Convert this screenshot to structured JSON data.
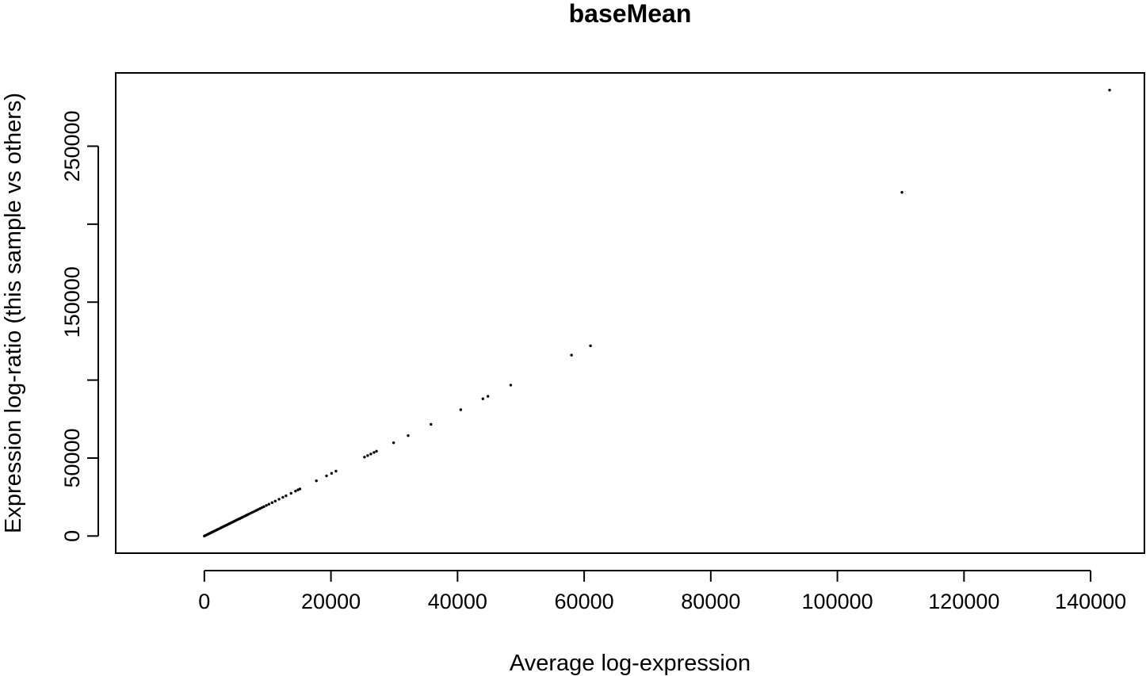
{
  "chart_data": {
    "type": "scatter",
    "title": "baseMean",
    "xlabel": "Average log-expression",
    "ylabel": "Expression log-ratio (this sample vs others)",
    "xlim": [
      -14000,
      148500
    ],
    "ylim": [
      -11000,
      297000
    ],
    "x_ticks": [
      0,
      20000,
      40000,
      60000,
      80000,
      100000,
      120000,
      140000
    ],
    "x_tick_labels": [
      "0",
      "20000",
      "40000",
      "60000",
      "80000",
      "100000",
      "120000",
      "140000"
    ],
    "y_ticks": [
      0,
      50000,
      100000,
      150000,
      200000,
      250000
    ],
    "y_tick_labels": [
      "0",
      "50000",
      "",
      "150000",
      "",
      "250000"
    ],
    "grid": false,
    "legend": "none",
    "point_color": "#000000",
    "points": [
      [
        0,
        0
      ],
      [
        200,
        400
      ],
      [
        400,
        800
      ],
      [
        600,
        1200
      ],
      [
        800,
        1600
      ],
      [
        1000,
        2000
      ],
      [
        1200,
        2400
      ],
      [
        1400,
        2800
      ],
      [
        1600,
        3200
      ],
      [
        1800,
        3600
      ],
      [
        2000,
        4000
      ],
      [
        2200,
        4400
      ],
      [
        2400,
        4800
      ],
      [
        2600,
        5200
      ],
      [
        2800,
        5600
      ],
      [
        3000,
        6000
      ],
      [
        3200,
        6400
      ],
      [
        3400,
        6800
      ],
      [
        3600,
        7200
      ],
      [
        3800,
        7600
      ],
      [
        4000,
        8000
      ],
      [
        4200,
        8400
      ],
      [
        4400,
        8800
      ],
      [
        4600,
        9200
      ],
      [
        4800,
        9600
      ],
      [
        5000,
        10000
      ],
      [
        5200,
        10400
      ],
      [
        5400,
        10800
      ],
      [
        5600,
        11200
      ],
      [
        5800,
        11600
      ],
      [
        6000,
        12000
      ],
      [
        6200,
        12400
      ],
      [
        6400,
        12800
      ],
      [
        6600,
        13200
      ],
      [
        6800,
        13600
      ],
      [
        7000,
        14000
      ],
      [
        7300,
        14600
      ],
      [
        7600,
        15200
      ],
      [
        7900,
        15800
      ],
      [
        8200,
        16400
      ],
      [
        8500,
        17000
      ],
      [
        8800,
        17600
      ],
      [
        9100,
        18200
      ],
      [
        9400,
        18800
      ],
      [
        9800,
        19600
      ],
      [
        10200,
        20400
      ],
      [
        10700,
        21400
      ],
      [
        11200,
        22400
      ],
      [
        11800,
        23600
      ],
      [
        12400,
        24800
      ],
      [
        12900,
        25800
      ],
      [
        13700,
        27400
      ],
      [
        14400,
        28800
      ],
      [
        14800,
        29600
      ],
      [
        15100,
        30200
      ],
      [
        17700,
        35400
      ],
      [
        19300,
        38600
      ],
      [
        20100,
        40200
      ],
      [
        20800,
        41600
      ],
      [
        25300,
        50600
      ],
      [
        25800,
        51600
      ],
      [
        26300,
        52600
      ],
      [
        26800,
        53600
      ],
      [
        27200,
        54400
      ],
      [
        29900,
        59800
      ],
      [
        32200,
        64400
      ],
      [
        35800,
        71600
      ],
      [
        40500,
        81000
      ],
      [
        44000,
        88000
      ],
      [
        44800,
        89600
      ],
      [
        48400,
        96800
      ],
      [
        58000,
        116000
      ],
      [
        61000,
        122000
      ],
      [
        110200,
        220400
      ],
      [
        143000,
        286000
      ]
    ]
  }
}
